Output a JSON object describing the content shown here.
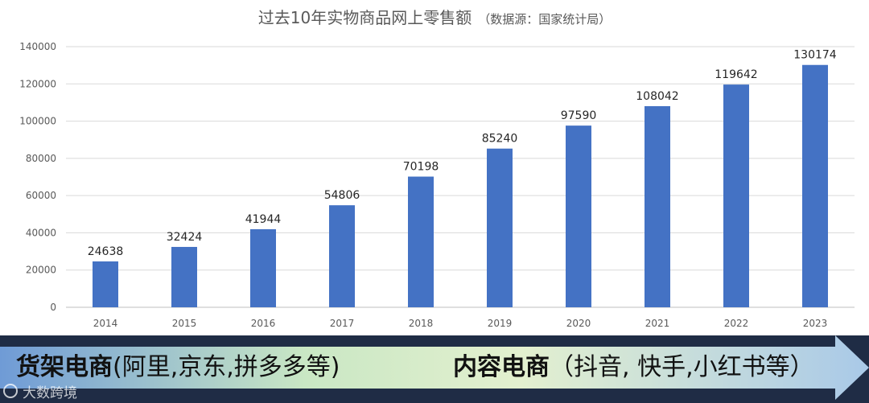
{
  "chart_data": {
    "type": "bar",
    "title": "过去10年实物商品网上零售额",
    "subtitle": "（数据源：国家统计局）",
    "categories": [
      "2014",
      "2015",
      "2016",
      "2017",
      "2018",
      "2019",
      "2020",
      "2021",
      "2022",
      "2023"
    ],
    "values": [
      24638,
      32424,
      41944,
      54806,
      70198,
      85240,
      97590,
      108042,
      119642,
      130174
    ],
    "ylim": [
      0,
      140000
    ],
    "yticks": [
      0,
      20000,
      40000,
      60000,
      80000,
      100000,
      120000,
      140000
    ],
    "grid": true,
    "bar_color": "#4472c4",
    "data_labels": true
  },
  "banner": {
    "shelf_main": "货架电商",
    "shelf_detail": "(阿里,京东,拼多多等)",
    "content_main": "内容电商",
    "content_detail": "（抖音, 快手,小红书等）"
  },
  "watermark": {
    "text": "大数跨境",
    "logo_text": "I"
  }
}
